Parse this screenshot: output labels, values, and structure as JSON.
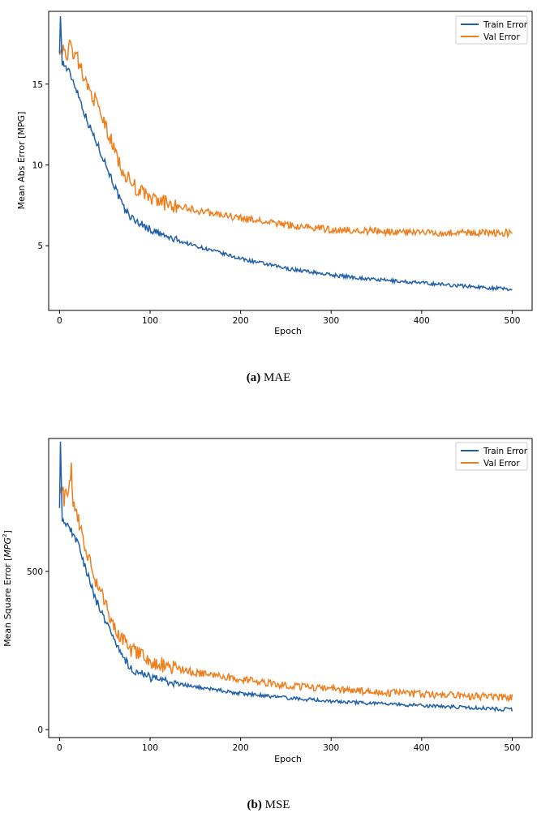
{
  "colors": {
    "train": "#1f5fa8",
    "val": "#f07e1c",
    "axis": "#000000"
  },
  "chart_data": [
    {
      "type": "line",
      "id": "mae",
      "title": "",
      "xlabel": "Epoch",
      "ylabel": "Mean Abs Error [MPG]",
      "xlim": [
        -12,
        522
      ],
      "ylim": [
        1.0,
        19.5
      ],
      "xticks": [
        0,
        100,
        200,
        300,
        400,
        500
      ],
      "yticks": [
        5,
        10,
        15
      ],
      "legend_position": "top-right",
      "series": [
        {
          "name": "Train Error",
          "x": [
            0,
            1,
            3,
            5,
            10,
            15,
            20,
            30,
            40,
            50,
            60,
            70,
            80,
            100,
            120,
            150,
            200,
            250,
            300,
            350,
            400,
            450,
            500
          ],
          "values": [
            16.9,
            19.2,
            16.4,
            16.2,
            15.8,
            15.2,
            14.5,
            12.8,
            11.5,
            10.2,
            8.8,
            7.4,
            6.7,
            6.0,
            5.5,
            5.0,
            4.2,
            3.6,
            3.2,
            2.9,
            2.7,
            2.5,
            2.3
          ]
        },
        {
          "name": "Val Error",
          "x": [
            0,
            3,
            5,
            10,
            13,
            15,
            20,
            30,
            40,
            50,
            60,
            70,
            80,
            100,
            120,
            150,
            200,
            250,
            300,
            350,
            400,
            450,
            500
          ],
          "values": [
            16.8,
            17.3,
            16.9,
            17.0,
            17.8,
            16.7,
            16.5,
            15.0,
            13.9,
            12.5,
            11.0,
            9.6,
            8.8,
            7.9,
            7.6,
            7.2,
            6.7,
            6.3,
            6.0,
            5.9,
            5.8,
            5.8,
            5.8
          ]
        }
      ]
    },
    {
      "type": "line",
      "id": "mse",
      "title": "",
      "xlabel": "Epoch",
      "ylabel_main": "Mean Square Error [",
      "ylabel_unit": "MPG",
      "ylabel_sup": "2",
      "ylabel_end": "]",
      "xlim": [
        -12,
        522
      ],
      "ylim": [
        -25,
        920
      ],
      "xticks": [
        0,
        100,
        200,
        300,
        400,
        500
      ],
      "yticks": [
        0,
        500
      ],
      "legend_position": "top-right",
      "series": [
        {
          "name": "Train Error",
          "x": [
            0,
            1,
            3,
            5,
            10,
            15,
            20,
            30,
            40,
            50,
            60,
            70,
            80,
            100,
            120,
            150,
            200,
            250,
            300,
            350,
            400,
            450,
            500
          ],
          "values": [
            700,
            910,
            670,
            650,
            640,
            620,
            590,
            500,
            410,
            350,
            290,
            230,
            190,
            165,
            150,
            135,
            115,
            100,
            90,
            82,
            76,
            70,
            63
          ]
        },
        {
          "name": "Val Error",
          "x": [
            0,
            3,
            5,
            10,
            13,
            15,
            20,
            30,
            40,
            50,
            60,
            70,
            80,
            100,
            120,
            150,
            200,
            250,
            300,
            350,
            400,
            450,
            500
          ],
          "values": [
            740,
            780,
            730,
            750,
            830,
            720,
            680,
            560,
            470,
            400,
            330,
            280,
            250,
            215,
            200,
            180,
            160,
            140,
            128,
            118,
            112,
            106,
            102
          ]
        }
      ]
    }
  ],
  "captions": [
    {
      "letter": "(a)",
      "text": " MAE"
    },
    {
      "letter": "(b)",
      "text": " MSE"
    }
  ]
}
